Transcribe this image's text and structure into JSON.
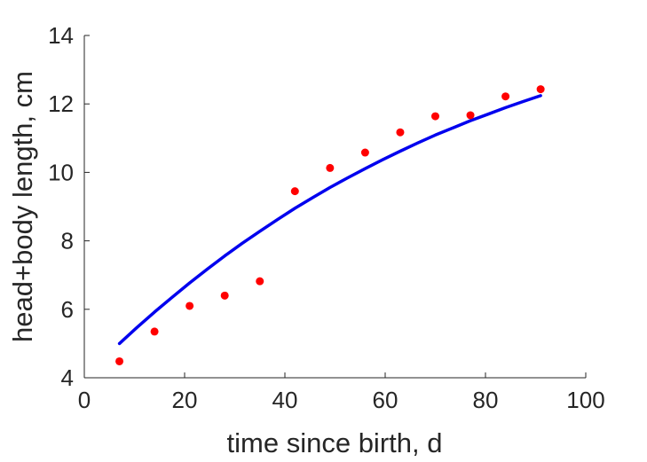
{
  "chart_data": {
    "type": "scatter",
    "title": "",
    "xlabel": "time since birth, d",
    "ylabel": "head+body length, cm",
    "xlim": [
      0,
      100
    ],
    "ylim": [
      4,
      14
    ],
    "xticks": [
      "0",
      "20",
      "40",
      "60",
      "80",
      "100"
    ],
    "yticks": [
      "4",
      "6",
      "8",
      "10",
      "12",
      "14"
    ],
    "grid": false,
    "legend": "none",
    "series": [
      {
        "kind": "scatter",
        "color": "#ff0000",
        "x": [
          7,
          14,
          21,
          28,
          35,
          42,
          49,
          56,
          63,
          70,
          77,
          84,
          91
        ],
        "y": [
          4.48,
          5.35,
          6.1,
          6.4,
          6.82,
          9.45,
          10.13,
          10.58,
          11.17,
          11.64,
          11.67,
          12.22,
          12.43
        ]
      },
      {
        "kind": "line",
        "color": "#0000ee",
        "x": [
          7,
          10.5,
          14,
          17.5,
          21,
          24.5,
          28,
          31.5,
          35,
          38.5,
          42,
          45.5,
          49,
          52.5,
          56,
          59.5,
          63,
          66.5,
          70,
          73.5,
          77,
          80.5,
          84,
          87.5,
          91
        ],
        "y": [
          5.0,
          5.47,
          5.92,
          6.35,
          6.77,
          7.17,
          7.56,
          7.93,
          8.28,
          8.62,
          8.95,
          9.26,
          9.56,
          9.84,
          10.11,
          10.37,
          10.62,
          10.86,
          11.09,
          11.3,
          11.51,
          11.7,
          11.89,
          12.07,
          12.24
        ]
      }
    ]
  }
}
